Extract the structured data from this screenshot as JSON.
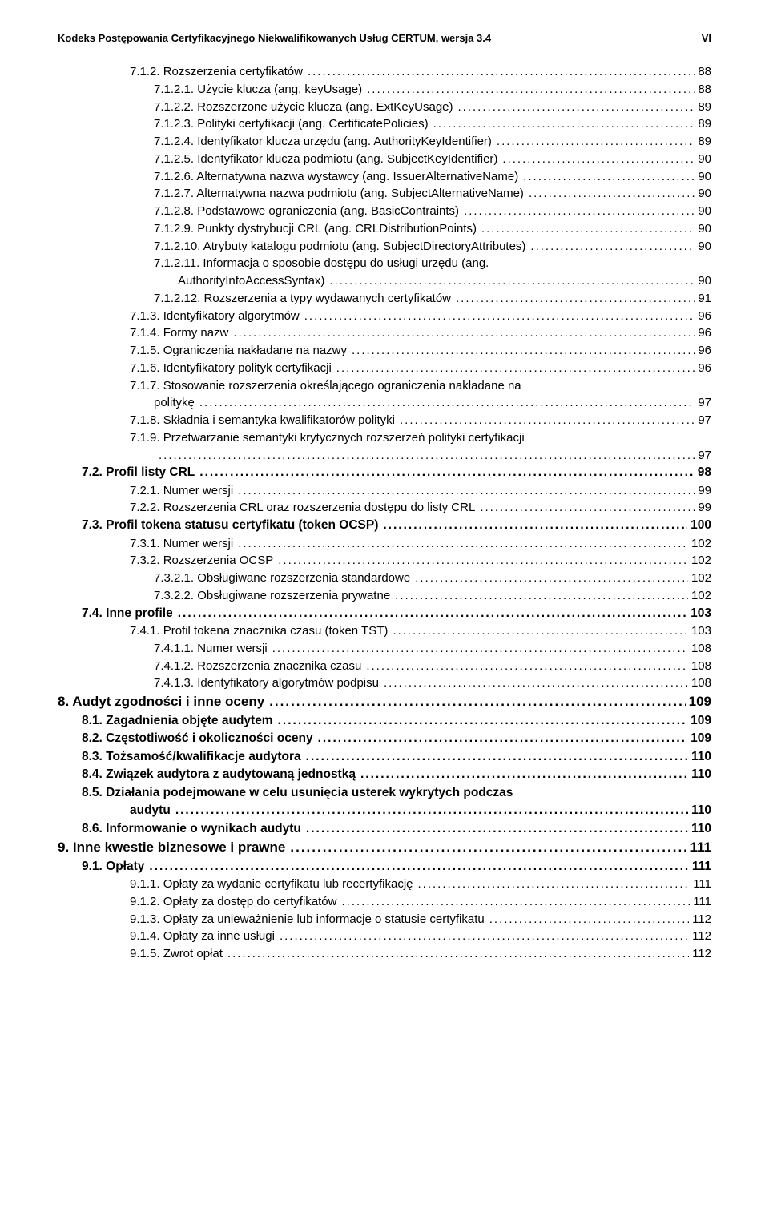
{
  "header": {
    "left": "Kodeks Postępowania Certyfikacyjnego Niekwalifikowanych Usług CERTUM, wersja 3.4",
    "right": "VI"
  },
  "toc": [
    {
      "indent": 3,
      "num": "7.1.2.",
      "title": "Rozszerzenia certyfikatów",
      "page": "88"
    },
    {
      "indent": 4,
      "num": "7.1.2.1.",
      "title": "Użycie klucza (ang. keyUsage)",
      "page": "88"
    },
    {
      "indent": 4,
      "num": "7.1.2.2.",
      "title": "Rozszerzone użycie klucza (ang. ExtKeyUsage)",
      "page": "89"
    },
    {
      "indent": 4,
      "num": "7.1.2.3.",
      "title": "Polityki certyfikacji (ang. CertificatePolicies)",
      "page": "89"
    },
    {
      "indent": 4,
      "num": "7.1.2.4.",
      "title": "Identyfikator klucza urzędu (ang. AuthorityKeyIdentifier)",
      "page": "89"
    },
    {
      "indent": 4,
      "num": "7.1.2.5.",
      "title": "Identyfikator klucza podmiotu (ang. SubjectKeyIdentifier)",
      "page": "90"
    },
    {
      "indent": 4,
      "num": "7.1.2.6.",
      "title": "Alternatywna nazwa wystawcy (ang. IssuerAlternativeName)",
      "page": "90"
    },
    {
      "indent": 4,
      "num": "7.1.2.7.",
      "title": "Alternatywna nazwa podmiotu (ang. SubjectAlternativeName)",
      "page": "90"
    },
    {
      "indent": 4,
      "num": "7.1.2.8.",
      "title": "Podstawowe ograniczenia (ang. BasicContraints)",
      "page": "90"
    },
    {
      "indent": 4,
      "num": "7.1.2.9.",
      "title": "Punkty dystrybucji CRL (ang. CRLDistributionPoints)",
      "page": "90"
    },
    {
      "indent": 4,
      "num": "7.1.2.10.",
      "title": "Atrybuty katalogu podmiotu (ang. SubjectDirectoryAttributes)",
      "page": "90"
    },
    {
      "indent": 4,
      "num": "7.1.2.11.",
      "title": "Informacja o sposobie dostępu do usługi urzędu (ang.",
      "page": "",
      "nopage": true
    },
    {
      "indent": -2,
      "num": "",
      "title": "AuthorityInfoAccessSyntax)",
      "page": "90"
    },
    {
      "indent": 4,
      "num": "7.1.2.12.",
      "title": "Rozszerzenia a typy wydawanych certyfikatów",
      "page": "91"
    },
    {
      "indent": 3,
      "num": "7.1.3.",
      "title": "Identyfikatory algorytmów",
      "page": "96"
    },
    {
      "indent": 3,
      "num": "7.1.4.",
      "title": "Formy nazw",
      "page": "96"
    },
    {
      "indent": 3,
      "num": "7.1.5.",
      "title": "Ograniczenia nakładane na nazwy",
      "page": "96"
    },
    {
      "indent": 3,
      "num": "7.1.6.",
      "title": "Identyfikatory polityk certyfikacji",
      "page": "96"
    },
    {
      "indent": 3,
      "num": "7.1.7.",
      "title": "Stosowanie rozszerzenia określającego ograniczenia nakładane na",
      "page": "",
      "nopage": true
    },
    {
      "indent": -1,
      "num": "",
      "title": "politykę",
      "page": "97"
    },
    {
      "indent": 3,
      "num": "7.1.8.",
      "title": "Składnia i semantyka kwalifikatorów polityki",
      "page": "97"
    },
    {
      "indent": 3,
      "num": "7.1.9.",
      "title": "Przetwarzanie semantyki krytycznych rozszerzeń polityki certyfikacji",
      "page": "",
      "nopage": true
    },
    {
      "indent": -1,
      "num": "",
      "title": "",
      "page": "97"
    },
    {
      "indent": 1,
      "num": "7.2.",
      "title": "Profil listy CRL",
      "page": "98"
    },
    {
      "indent": 3,
      "num": "7.2.1.",
      "title": "Numer wersji",
      "page": "99"
    },
    {
      "indent": 3,
      "num": "7.2.2.",
      "title": "Rozszerzenia CRL oraz rozszerzenia dostępu do listy CRL",
      "page": "99"
    },
    {
      "indent": 1,
      "num": "7.3.",
      "title": "Profil tokena statusu certyfikatu (token OCSP)",
      "page": "100"
    },
    {
      "indent": 3,
      "num": "7.3.1.",
      "title": "Numer wersji",
      "page": "102"
    },
    {
      "indent": 3,
      "num": "7.3.2.",
      "title": "Rozszerzenia OCSP",
      "page": "102"
    },
    {
      "indent": 4,
      "num": "7.3.2.1.",
      "title": "Obsługiwane rozszerzenia standardowe",
      "page": "102"
    },
    {
      "indent": 4,
      "num": "7.3.2.2.",
      "title": "Obsługiwane rozszerzenia prywatne",
      "page": "102"
    },
    {
      "indent": 1,
      "num": "7.4.",
      "title": "Inne profile",
      "page": "103"
    },
    {
      "indent": 3,
      "num": "7.4.1.",
      "title": "Profil tokena znacznika czasu (token TST)",
      "page": "103"
    },
    {
      "indent": 4,
      "num": "7.4.1.1.",
      "title": "Numer wersji",
      "page": "108"
    },
    {
      "indent": 4,
      "num": "7.4.1.2.",
      "title": "Rozszerzenia znacznika czasu",
      "page": "108"
    },
    {
      "indent": 4,
      "num": "7.4.1.3.",
      "title": "Identyfikatory algorytmów podpisu",
      "page": "108"
    },
    {
      "indent": 0,
      "num": "8.",
      "title": "Audyt zgodności i inne oceny",
      "page": "109"
    },
    {
      "indent": 1,
      "num": "8.1.",
      "title": "Zagadnienia objęte audytem",
      "page": "109"
    },
    {
      "indent": 1,
      "num": "8.2.",
      "title": "Częstotliwość i okoliczności oceny",
      "page": "109"
    },
    {
      "indent": 1,
      "num": "8.3.",
      "title": "Tożsamość/kwalifikacje audytora",
      "page": "110"
    },
    {
      "indent": 1,
      "num": "8.4.",
      "title": "Związek audytora z audytowaną jednostką",
      "page": "110"
    },
    {
      "indent": 1,
      "num": "8.5.",
      "title": "Działania podejmowane w celu usunięcia usterek wykrytych podczas",
      "page": "",
      "nopage": true
    },
    {
      "indent": -3,
      "num": "",
      "title": "audytu",
      "page": "110",
      "bold": true
    },
    {
      "indent": 1,
      "num": "8.6.",
      "title": "Informowanie o wynikach audytu",
      "page": "110"
    },
    {
      "indent": 0,
      "num": "9.",
      "title": "Inne kwestie biznesowe i prawne",
      "page": "111"
    },
    {
      "indent": 1,
      "num": "9.1.",
      "title": "Opłaty",
      "page": "111"
    },
    {
      "indent": 3,
      "num": "9.1.1.",
      "title": "Opłaty za wydanie certyfikatu lub recertyfikację",
      "page": "111"
    },
    {
      "indent": 3,
      "num": "9.1.2.",
      "title": "Opłaty za dostęp do certyfikatów",
      "page": "111"
    },
    {
      "indent": 3,
      "num": "9.1.3.",
      "title": "Opłaty za unieważnienie lub informacje o statusie certyfikatu",
      "page": "112"
    },
    {
      "indent": 3,
      "num": "9.1.4.",
      "title": "Opłaty za inne usługi",
      "page": "112"
    },
    {
      "indent": 3,
      "num": "9.1.5.",
      "title": "Zwrot opłat",
      "page": "112"
    }
  ]
}
